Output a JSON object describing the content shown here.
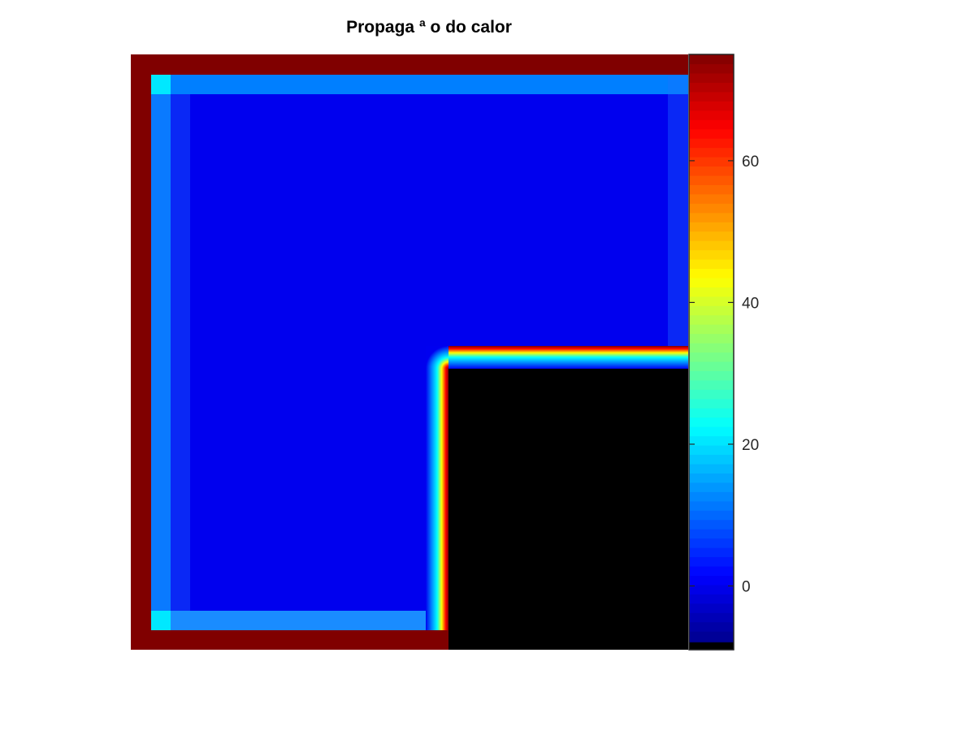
{
  "title": "Propaga  ª o do calor",
  "chart_data": {
    "type": "heatmap",
    "title": "Propaga  ª o do calor",
    "colormap": "jet",
    "colorbar": {
      "clim": [
        -9,
        75
      ],
      "ticks": [
        0,
        20,
        40,
        60
      ],
      "tick_labels": [
        "0",
        "20",
        "40",
        "60"
      ]
    },
    "regions": [
      {
        "name": "outer boundary",
        "value": 75
      },
      {
        "name": "interior",
        "value": 3
      },
      {
        "name": "near-boundary band",
        "value": 12
      },
      {
        "name": "corner cells",
        "value": 25
      },
      {
        "name": "gradient band next to cut-out",
        "range": [
          3,
          75
        ]
      },
      {
        "name": "cut-out region",
        "value": "black"
      }
    ],
    "axes_visible": false
  }
}
